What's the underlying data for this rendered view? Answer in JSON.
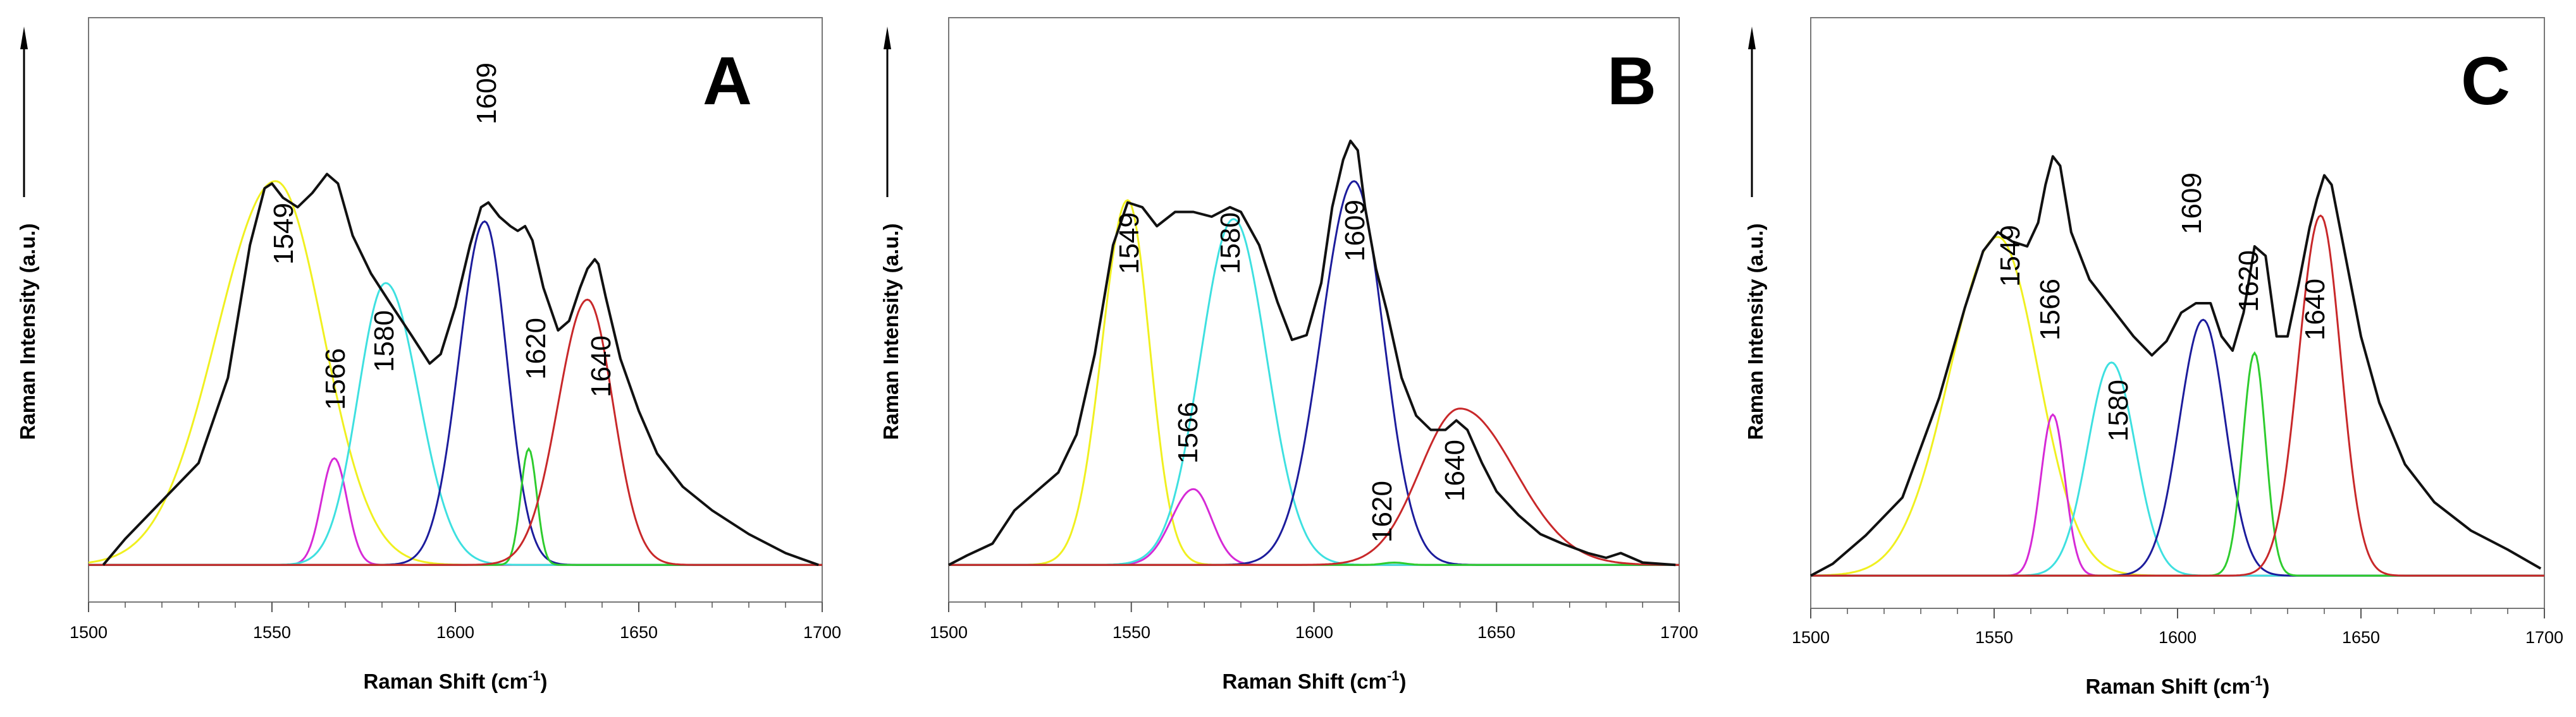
{
  "colors": {
    "envelope": "#111111",
    "1549": "#f0f020",
    "1566": "#d62ad6",
    "1580": "#3ee0e0",
    "1609": "#1c1c9c",
    "1620": "#2ecc2e",
    "1640": "#c8282a"
  },
  "chart_data": [
    {
      "type": "line",
      "panel": "A",
      "xlabel": "Raman Shift (cm",
      "xlabel_sup": "-1",
      "xlabel_end": ")",
      "ylabel": "Raman Intensity (a.u.)",
      "xlim": [
        1500,
        1700
      ],
      "ylim": [
        0,
        100
      ],
      "xticks": [
        "1500",
        "1550",
        "1600",
        "1650",
        "1700"
      ],
      "baseline": 0.5,
      "peaks": [
        {
          "label": "1549",
          "center": 1551,
          "amp": 81,
          "sigmaL": 16,
          "sigmaR": 13
        },
        {
          "label": "1566",
          "center": 1567,
          "amp": 22.5,
          "sigmaL": 3.5,
          "sigmaR": 3.5
        },
        {
          "label": "1580",
          "center": 1581,
          "amp": 59.5,
          "sigmaL": 7.5,
          "sigmaR": 9
        },
        {
          "label": "1609",
          "center": 1608,
          "amp": 72.5,
          "sigmaL": 7,
          "sigmaR": 6
        },
        {
          "label": "1620",
          "center": 1620,
          "amp": 24.5,
          "sigmaL": 2.2,
          "sigmaR": 2.2
        },
        {
          "label": "1640",
          "center": 1636,
          "amp": 56,
          "sigmaL": 8,
          "sigmaR": 7
        }
      ],
      "envelope": {
        "x": [
          1504,
          1510,
          1520,
          1530,
          1538,
          1544,
          1548,
          1550,
          1553,
          1557,
          1561,
          1565,
          1568,
          1572,
          1577,
          1582,
          1588,
          1593,
          1596,
          1600,
          1604,
          1607,
          1609,
          1612,
          1615,
          1617,
          1619,
          1621,
          1624,
          1628,
          1631,
          1634,
          1636,
          1638,
          1639,
          1641,
          1645,
          1650,
          1655,
          1662,
          1670,
          1680,
          1690,
          1699
        ],
        "y": [
          0.5,
          6,
          14,
          22,
          40,
          68,
          80,
          81,
          78,
          76,
          79,
          83,
          81,
          70,
          62,
          56,
          49,
          43,
          45,
          55,
          68,
          76,
          77,
          74,
          72,
          71,
          72,
          69,
          59,
          50,
          52,
          59,
          63,
          65,
          64,
          57,
          44,
          33,
          24,
          17,
          12,
          7,
          3,
          0.5
        ]
      },
      "annotations": [
        "1549",
        "1566",
        "1580",
        "1609",
        "1620",
        "1640"
      ]
    },
    {
      "type": "line",
      "panel": "B",
      "xlabel": "Raman Shift (cm",
      "xlabel_sup": "-1",
      "xlabel_end": ")",
      "ylabel": "Raman Intensity (a.u.)",
      "xlim": [
        1500,
        1700
      ],
      "ylim": [
        0,
        100
      ],
      "xticks": [
        "1500",
        "1550",
        "1600",
        "1650",
        "1700"
      ],
      "baseline": 0.5,
      "peaks": [
        {
          "label": "1549",
          "center": 1549,
          "amp": 77,
          "sigmaL": 7,
          "sigmaR": 6
        },
        {
          "label": "1566",
          "center": 1567,
          "amp": 16,
          "sigmaL": 6,
          "sigmaR": 5
        },
        {
          "label": "1580",
          "center": 1578,
          "amp": 73,
          "sigmaL": 9,
          "sigmaR": 9
        },
        {
          "label": "1609",
          "center": 1611,
          "amp": 81,
          "sigmaL": 9,
          "sigmaR": 8
        },
        {
          "label": "1620",
          "center": 1622,
          "amp": 0.5,
          "sigmaL": 3,
          "sigmaR": 3
        },
        {
          "label": "1640",
          "center": 1640,
          "amp": 33,
          "sigmaL": 11,
          "sigmaR": 15
        }
      ],
      "envelope": {
        "x": [
          1500,
          1505,
          1512,
          1518,
          1524,
          1530,
          1535,
          1540,
          1545,
          1549,
          1553,
          1557,
          1562,
          1567,
          1572,
          1577,
          1580,
          1585,
          1590,
          1594,
          1598,
          1602,
          1605,
          1608,
          1610,
          1612,
          1614,
          1617,
          1620,
          1624,
          1628,
          1632,
          1636,
          1639,
          1642,
          1646,
          1650,
          1656,
          1662,
          1668,
          1675,
          1680,
          1684,
          1690,
          1699
        ],
        "y": [
          0.5,
          2.5,
          5,
          12,
          16,
          20,
          28,
          45,
          68,
          77,
          76,
          72,
          75,
          75,
          74,
          76,
          75,
          68,
          56,
          48,
          49,
          60,
          76,
          86,
          90,
          88,
          76,
          63,
          54,
          40,
          32,
          29,
          29,
          31,
          29,
          22,
          16,
          11,
          7,
          5,
          3,
          2,
          3,
          1,
          0.5
        ]
      },
      "annotations": [
        "1549",
        "1566",
        "1580",
        "1609",
        "1620",
        "1640"
      ]
    },
    {
      "type": "line",
      "panel": "C",
      "xlabel": "Raman Shift (cm",
      "xlabel_sup": "-1",
      "xlabel_end": ")",
      "ylabel": "Raman Intensity (a.u.)",
      "xlim": [
        1500,
        1700
      ],
      "ylim": [
        0,
        100
      ],
      "xticks": [
        "1500",
        "1550",
        "1600",
        "1650",
        "1700"
      ],
      "baseline": 0.5,
      "peaks": [
        {
          "label": "1549",
          "center": 1551,
          "amp": 71.5,
          "sigmaL": 13,
          "sigmaR": 11
        },
        {
          "label": "1566",
          "center": 1566,
          "amp": 34,
          "sigmaL": 3.3,
          "sigmaR": 3.3
        },
        {
          "label": "1580",
          "center": 1582,
          "amp": 45,
          "sigmaL": 6.5,
          "sigmaR": 6.5
        },
        {
          "label": "1609",
          "center": 1607,
          "amp": 54,
          "sigmaL": 6.5,
          "sigmaR": 6
        },
        {
          "label": "1620",
          "center": 1621,
          "amp": 47,
          "sigmaL": 3.2,
          "sigmaR": 3
        },
        {
          "label": "1640",
          "center": 1639,
          "amp": 76,
          "sigmaL": 6,
          "sigmaR": 5.5
        }
      ],
      "envelope": {
        "x": [
          1500,
          1506,
          1515,
          1525,
          1535,
          1542,
          1547,
          1551,
          1555,
          1559,
          1562,
          1564,
          1566,
          1568,
          1571,
          1576,
          1582,
          1588,
          1593,
          1597,
          1601,
          1605,
          1607,
          1609,
          1612,
          1615,
          1618,
          1621,
          1624,
          1627,
          1630,
          1633,
          1636,
          1638,
          1640,
          1642,
          1645,
          1650,
          1655,
          1662,
          1670,
          1680,
          1690,
          1699
        ],
        "y": [
          0.5,
          3,
          9,
          17,
          38,
          57,
          69,
          73,
          71,
          70,
          75,
          83,
          89,
          87,
          73,
          63,
          57,
          51,
          47,
          50,
          56,
          58,
          58,
          58,
          51,
          48,
          56,
          70,
          68,
          51,
          51,
          62,
          74,
          80,
          85,
          83,
          71,
          51,
          37,
          24,
          16,
          10,
          6,
          2
        ]
      },
      "annotations": [
        "1549",
        "1566",
        "1580",
        "1609",
        "1620",
        "1640"
      ]
    }
  ]
}
